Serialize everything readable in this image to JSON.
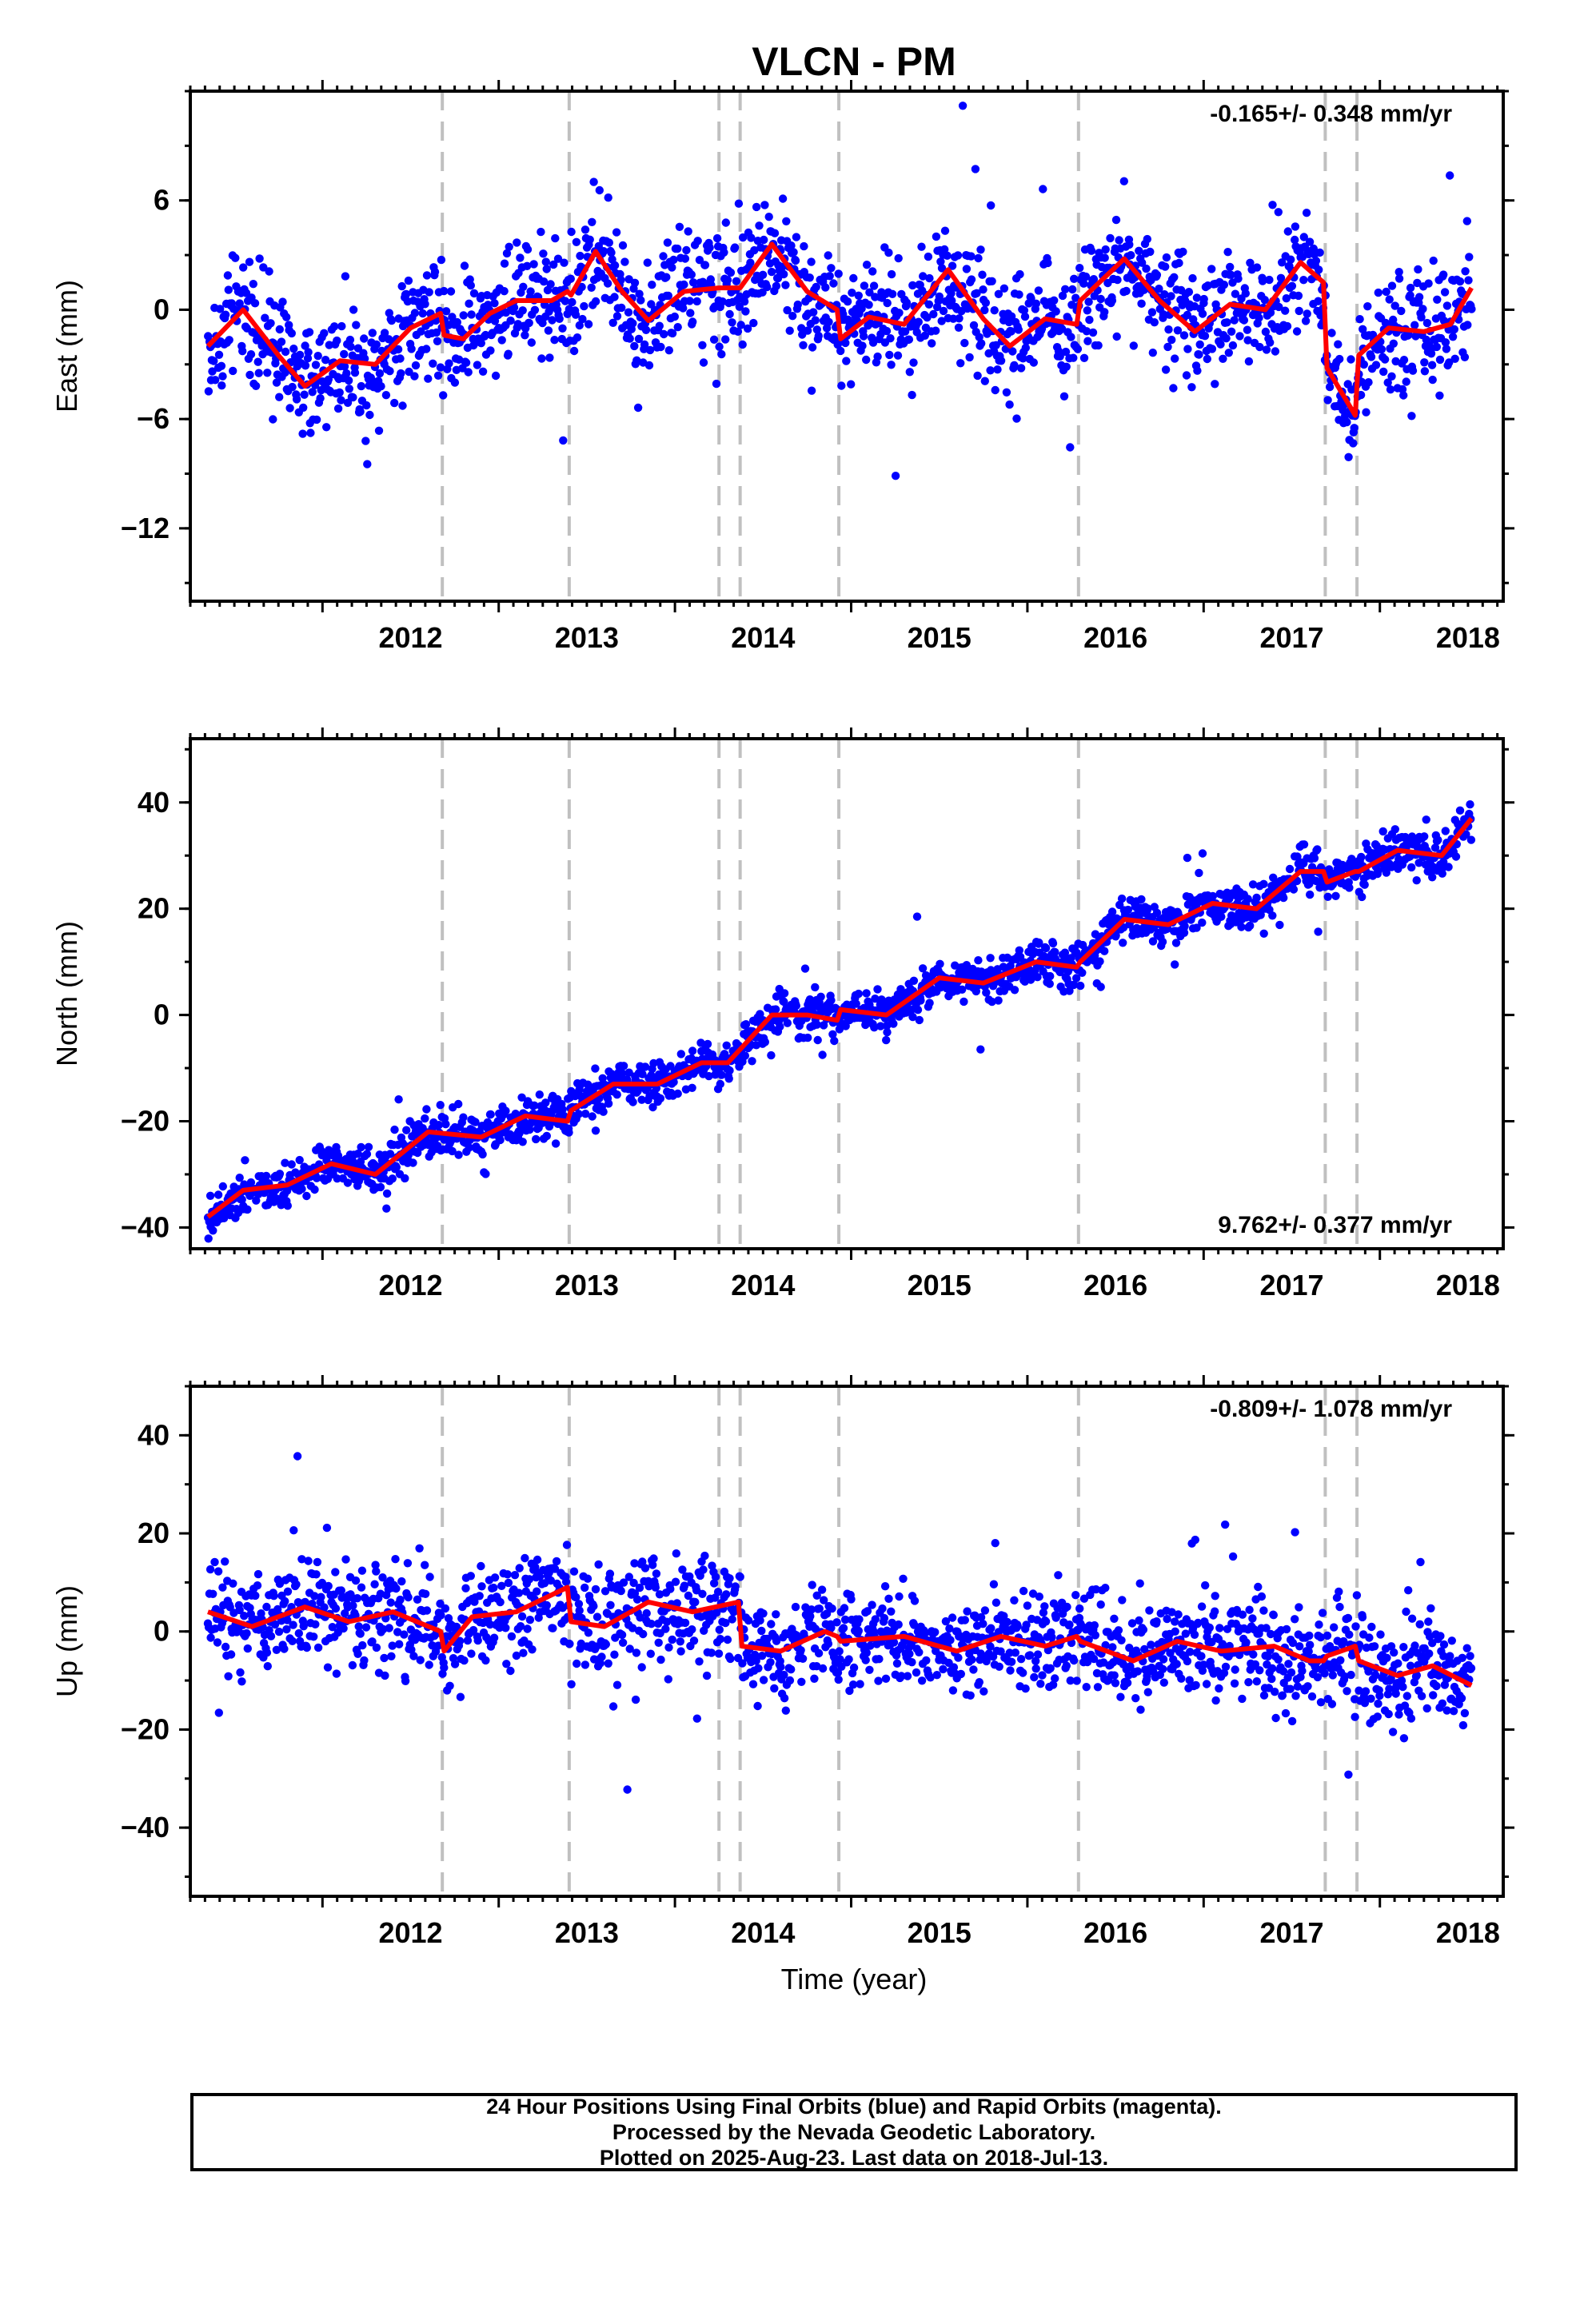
{
  "title": "VLCN - PM",
  "xlabel": "Time (year)",
  "footer": {
    "line1": "24 Hour Positions Using Final Orbits (blue) and Rapid Orbits (magenta).",
    "line2": "Processed by the Nevada Geodetic Laboratory.",
    "line3": "Plotted on 2025-Aug-23. Last data on 2018-Jul-13."
  },
  "colors": {
    "points": "#0000ff",
    "fit": "#ff0000",
    "dashed": "#c0c0c0",
    "axis": "#000000"
  },
  "chart_data": [
    {
      "type": "scatter",
      "component": "East",
      "ylabel": "East (mm)",
      "rate_label": "-0.165+/- 0.348 mm/yr",
      "rate_position": "top-right",
      "xlim": [
        2011.25,
        2018.7
      ],
      "ylim": [
        -16,
        12
      ],
      "x_ticks": [
        2012,
        2013,
        2014,
        2015,
        2016,
        2017,
        2018
      ],
      "y_ticks": [
        -12,
        -6,
        0,
        6
      ],
      "y_tick_labels": [
        "−12",
        "−6",
        "0",
        "6"
      ],
      "breaks": [
        2012.68,
        2013.4,
        2014.25,
        2014.37,
        2014.93,
        2016.29,
        2017.69,
        2017.87
      ],
      "fit": {
        "x": [
          2011.35,
          2011.55,
          2011.75,
          2011.9,
          2012.1,
          2012.3,
          2012.5,
          2012.67,
          2012.69,
          2012.8,
          2012.95,
          2013.1,
          2013.3,
          2013.39,
          2013.41,
          2013.55,
          2013.7,
          2013.85,
          2014.05,
          2014.25,
          2014.37,
          2014.55,
          2014.75,
          2014.92,
          2014.94,
          2015.1,
          2015.3,
          2015.55,
          2015.75,
          2015.9,
          2016.1,
          2016.28,
          2016.3,
          2016.55,
          2016.75,
          2016.95,
          2017.15,
          2017.35,
          2017.55,
          2017.68,
          2017.7,
          2017.86,
          2017.88,
          2018.05,
          2018.25,
          2018.4,
          2018.52
        ],
        "y": [
          -2.0,
          0.0,
          -2.5,
          -4.2,
          -2.8,
          -3.0,
          -1.0,
          -0.2,
          -1.4,
          -1.6,
          -0.2,
          0.5,
          0.5,
          1.0,
          0.8,
          3.2,
          1.0,
          -0.6,
          1.0,
          1.2,
          1.2,
          3.6,
          1.0,
          0.0,
          -1.6,
          -0.4,
          -0.8,
          2.2,
          -0.5,
          -2.0,
          -0.5,
          -0.8,
          0.5,
          2.8,
          0.5,
          -1.2,
          0.3,
          0.0,
          2.6,
          1.5,
          -3.2,
          -5.8,
          -2.5,
          -1.0,
          -1.2,
          -0.8,
          1.2
        ]
      }
    },
    {
      "type": "scatter",
      "component": "North",
      "ylabel": "North (mm)",
      "rate_label": "9.762+/- 0.377 mm/yr",
      "rate_position": "bottom-right",
      "xlim": [
        2011.25,
        2018.7
      ],
      "ylim": [
        -44,
        52
      ],
      "x_ticks": [
        2012,
        2013,
        2014,
        2015,
        2016,
        2017,
        2018
      ],
      "y_ticks": [
        -40,
        -20,
        0,
        20,
        40
      ],
      "y_tick_labels": [
        "−40",
        "−20",
        "0",
        "20",
        "40"
      ],
      "breaks": [
        2012.68,
        2013.4,
        2014.25,
        2014.37,
        2014.93,
        2016.29,
        2017.69,
        2017.87
      ],
      "fit": {
        "x": [
          2011.35,
          2011.55,
          2011.8,
          2012.05,
          2012.3,
          2012.6,
          2012.9,
          2013.15,
          2013.39,
          2013.41,
          2013.65,
          2013.9,
          2014.15,
          2014.3,
          2014.55,
          2014.75,
          2014.92,
          2014.94,
          2015.2,
          2015.5,
          2015.75,
          2016.05,
          2016.28,
          2016.3,
          2016.55,
          2016.8,
          2017.05,
          2017.3,
          2017.55,
          2017.68,
          2017.7,
          2017.86,
          2017.88,
          2018.1,
          2018.35,
          2018.52
        ],
        "y": [
          -38,
          -33,
          -32,
          -28,
          -30,
          -22,
          -23,
          -19,
          -20,
          -18,
          -13,
          -13,
          -9,
          -9,
          0,
          0,
          -1,
          1,
          0,
          7,
          6,
          10,
          9,
          10,
          18,
          17,
          21,
          20,
          27,
          27,
          25,
          27,
          27,
          31,
          30,
          37
        ]
      }
    },
    {
      "type": "scatter",
      "component": "Up",
      "ylabel": "Up (mm)",
      "rate_label": "-0.809+/- 1.078 mm/yr",
      "rate_position": "top-right",
      "xlim": [
        2011.25,
        2018.7
      ],
      "ylim": [
        -54,
        50
      ],
      "x_ticks": [
        2012,
        2013,
        2014,
        2015,
        2016,
        2017,
        2018
      ],
      "y_ticks": [
        -40,
        -20,
        0,
        20,
        40
      ],
      "y_tick_labels": [
        "−40",
        "−20",
        "0",
        "20",
        "40"
      ],
      "breaks": [
        2012.68,
        2013.4,
        2014.25,
        2014.37,
        2014.93,
        2016.29,
        2017.69,
        2017.87
      ],
      "fit": {
        "x": [
          2011.35,
          2011.6,
          2011.9,
          2012.15,
          2012.4,
          2012.67,
          2012.69,
          2012.85,
          2013.1,
          2013.39,
          2013.41,
          2013.6,
          2013.85,
          2014.1,
          2014.36,
          2014.38,
          2014.6,
          2014.85,
          2014.92,
          2014.94,
          2015.3,
          2015.6,
          2015.85,
          2016.1,
          2016.28,
          2016.3,
          2016.6,
          2016.85,
          2017.1,
          2017.4,
          2017.6,
          2017.68,
          2017.7,
          2017.86,
          2017.88,
          2018.1,
          2018.3,
          2018.52
        ],
        "y": [
          4,
          1,
          5,
          2,
          4,
          0,
          -4,
          3,
          4,
          9,
          2,
          1,
          6,
          4,
          6,
          -3,
          -4,
          0,
          -1,
          -2,
          -1,
          -4,
          -1,
          -3,
          -1,
          -2,
          -6,
          -2,
          -4,
          -3,
          -6,
          -6,
          -5,
          -3,
          -6,
          -9,
          -7,
          -11
        ]
      }
    }
  ]
}
